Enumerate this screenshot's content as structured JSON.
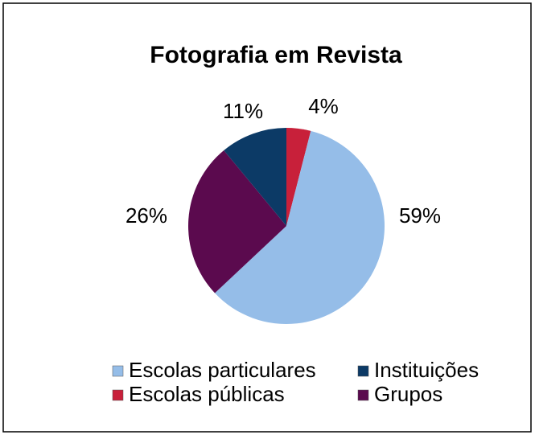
{
  "chart_data": {
    "type": "pie",
    "title": "Fotografia em Revista",
    "categories": [
      "Escolas públicas",
      "Escolas particulares",
      "Grupos",
      "Instituições"
    ],
    "values": [
      4,
      59,
      26,
      11
    ],
    "colors": [
      "#c8203a",
      "#95bde8",
      "#5b0a4e",
      "#0c3a66"
    ]
  }
}
